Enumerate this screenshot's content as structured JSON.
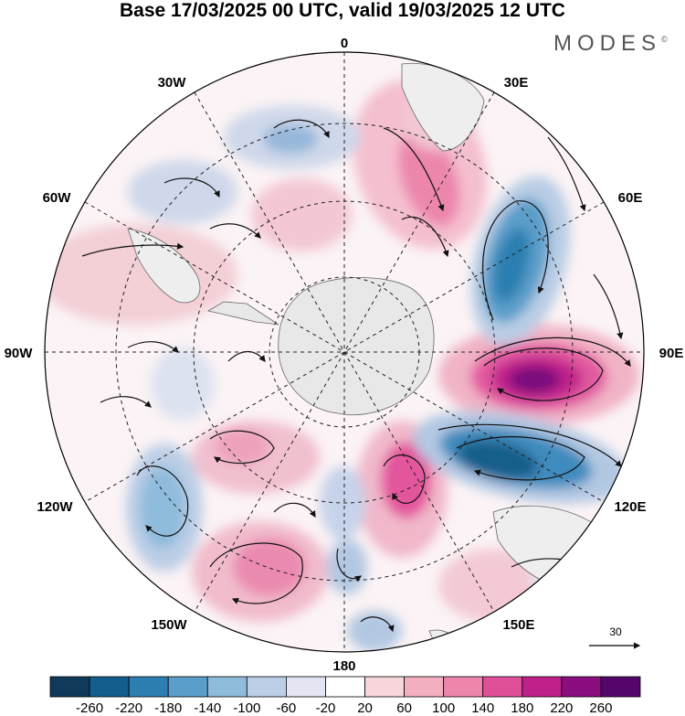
{
  "header": {
    "title": "Base 17/03/2025 00 UTC, valid 19/03/2025 12 UTC",
    "brand": "MODES"
  },
  "map": {
    "projection": "south-polar-stereographic",
    "longitude_labels": {
      "top": "0",
      "top_right": "30E",
      "right_upper": "60E",
      "right": "90E",
      "right_lower": "120E",
      "bottom_right": "150E",
      "bottom": "180",
      "bottom_left": "150W",
      "left_lower": "120W",
      "left": "90W",
      "left_upper": "60W",
      "top_left": "30W"
    },
    "reference_vector_label": "30"
  },
  "colorbar": {
    "tick_labels": [
      "-260",
      "-220",
      "-180",
      "-140",
      "-100",
      "-60",
      "-20",
      "20",
      "60",
      "100",
      "140",
      "180",
      "220",
      "260"
    ],
    "colors": [
      "#0f3a5c",
      "#135e8c",
      "#2c7fb0",
      "#5a9fcb",
      "#8fbbdc",
      "#bccee6",
      "#e3e5f2",
      "#ffffff",
      "#f7d6dc",
      "#f2afc0",
      "#ee85ad",
      "#e04f9a",
      "#c0208a",
      "#8a0e80",
      "#55066b"
    ]
  }
}
